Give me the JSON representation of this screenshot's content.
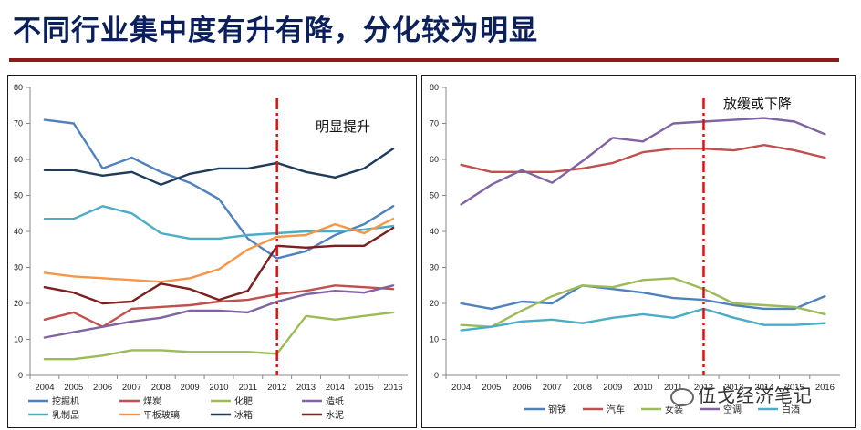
{
  "page": {
    "title": "不同行业集中度有升有降，分化较为明显"
  },
  "watermark": "伍戈经济笔记",
  "chart_data": [
    {
      "type": "line",
      "title": "",
      "annotation": "明显提升",
      "ylim": [
        0,
        80
      ],
      "yticks": [
        0,
        10,
        20,
        30,
        40,
        50,
        60,
        70,
        80
      ],
      "x": [
        "2004",
        "2005",
        "2006",
        "2007",
        "2008",
        "2009",
        "2010",
        "2011",
        "2012",
        "2013",
        "2014",
        "2015",
        "2016"
      ],
      "marker_x": "2012",
      "legend_position": "bottom",
      "series": [
        {
          "name": "挖掘机",
          "color": "#4f81bd",
          "values": [
            71,
            70,
            57.5,
            60.5,
            56.5,
            53.5,
            49,
            38,
            32.5,
            34.5,
            39,
            42,
            47
          ]
        },
        {
          "name": "煤炭",
          "color": "#c0504d",
          "values": [
            15.5,
            17.5,
            13.5,
            18.5,
            19,
            19.5,
            20.5,
            21,
            22.5,
            23.5,
            25,
            24.5,
            24
          ]
        },
        {
          "name": "化肥",
          "color": "#9bbb59",
          "values": [
            4.5,
            4.5,
            5.5,
            7,
            7,
            6.5,
            6.5,
            6.5,
            6,
            16.5,
            15.5,
            16.5,
            17.5
          ]
        },
        {
          "name": "造纸",
          "color": "#8064a2",
          "values": [
            10.5,
            12,
            13.5,
            15,
            16,
            18,
            18,
            17.5,
            20.5,
            22.5,
            23.5,
            23,
            25
          ]
        },
        {
          "name": "乳制品",
          "color": "#4bacc6",
          "values": [
            43.5,
            43.5,
            47,
            45,
            39.5,
            38,
            38,
            39,
            39.5,
            40,
            40,
            40.5,
            41.5
          ]
        },
        {
          "name": "平板玻璃",
          "color": "#f79646",
          "values": [
            28.5,
            27.5,
            27,
            26.5,
            26,
            27,
            29.5,
            35,
            38.5,
            39,
            42,
            39.5,
            43.5
          ]
        },
        {
          "name": "冰箱",
          "color": "#1f3a5a",
          "values": [
            57,
            57,
            55.5,
            56.5,
            53,
            56,
            57.5,
            57.5,
            59,
            56.5,
            55,
            57.5,
            63
          ]
        },
        {
          "name": "水泥",
          "color": "#7b1f1f",
          "values": [
            24.5,
            23,
            20,
            20.5,
            25.5,
            24,
            21,
            23.5,
            36,
            35.5,
            36,
            36,
            41
          ]
        }
      ]
    },
    {
      "type": "line",
      "title": "",
      "annotation": "放缓或下降",
      "ylim": [
        0,
        80
      ],
      "yticks": [
        0,
        10,
        20,
        30,
        40,
        50,
        60,
        70,
        80
      ],
      "x": [
        "2004",
        "2005",
        "2006",
        "2007",
        "2008",
        "2009",
        "2010",
        "2011",
        "2012",
        "2013",
        "2014",
        "2015",
        "2016"
      ],
      "marker_x": "2012",
      "legend_position": "bottom",
      "series": [
        {
          "name": "钢铁",
          "color": "#4f81bd",
          "values": [
            20,
            18.5,
            20.5,
            20,
            25,
            24,
            23,
            21.5,
            21,
            19.5,
            18.5,
            18.5,
            22
          ]
        },
        {
          "name": "汽车",
          "color": "#c0504d",
          "values": [
            58.5,
            56.5,
            56.5,
            56.5,
            57.5,
            59,
            62,
            63,
            63,
            62.5,
            64,
            62.5,
            60.5
          ]
        },
        {
          "name": "女装",
          "color": "#9bbb59",
          "values": [
            14,
            13.5,
            18,
            22,
            25,
            24.5,
            26.5,
            27,
            24,
            20,
            19.5,
            19,
            17
          ]
        },
        {
          "name": "空调",
          "color": "#8064a2",
          "values": [
            47.5,
            53,
            57,
            53.5,
            59.5,
            66,
            65,
            70,
            70.5,
            71,
            71.5,
            70.5,
            67
          ]
        },
        {
          "name": "白酒",
          "color": "#4bacc6",
          "values": [
            12.5,
            13.5,
            15,
            15.5,
            14.5,
            16,
            17,
            16,
            18.5,
            16,
            14,
            14,
            14.5
          ]
        }
      ]
    }
  ]
}
